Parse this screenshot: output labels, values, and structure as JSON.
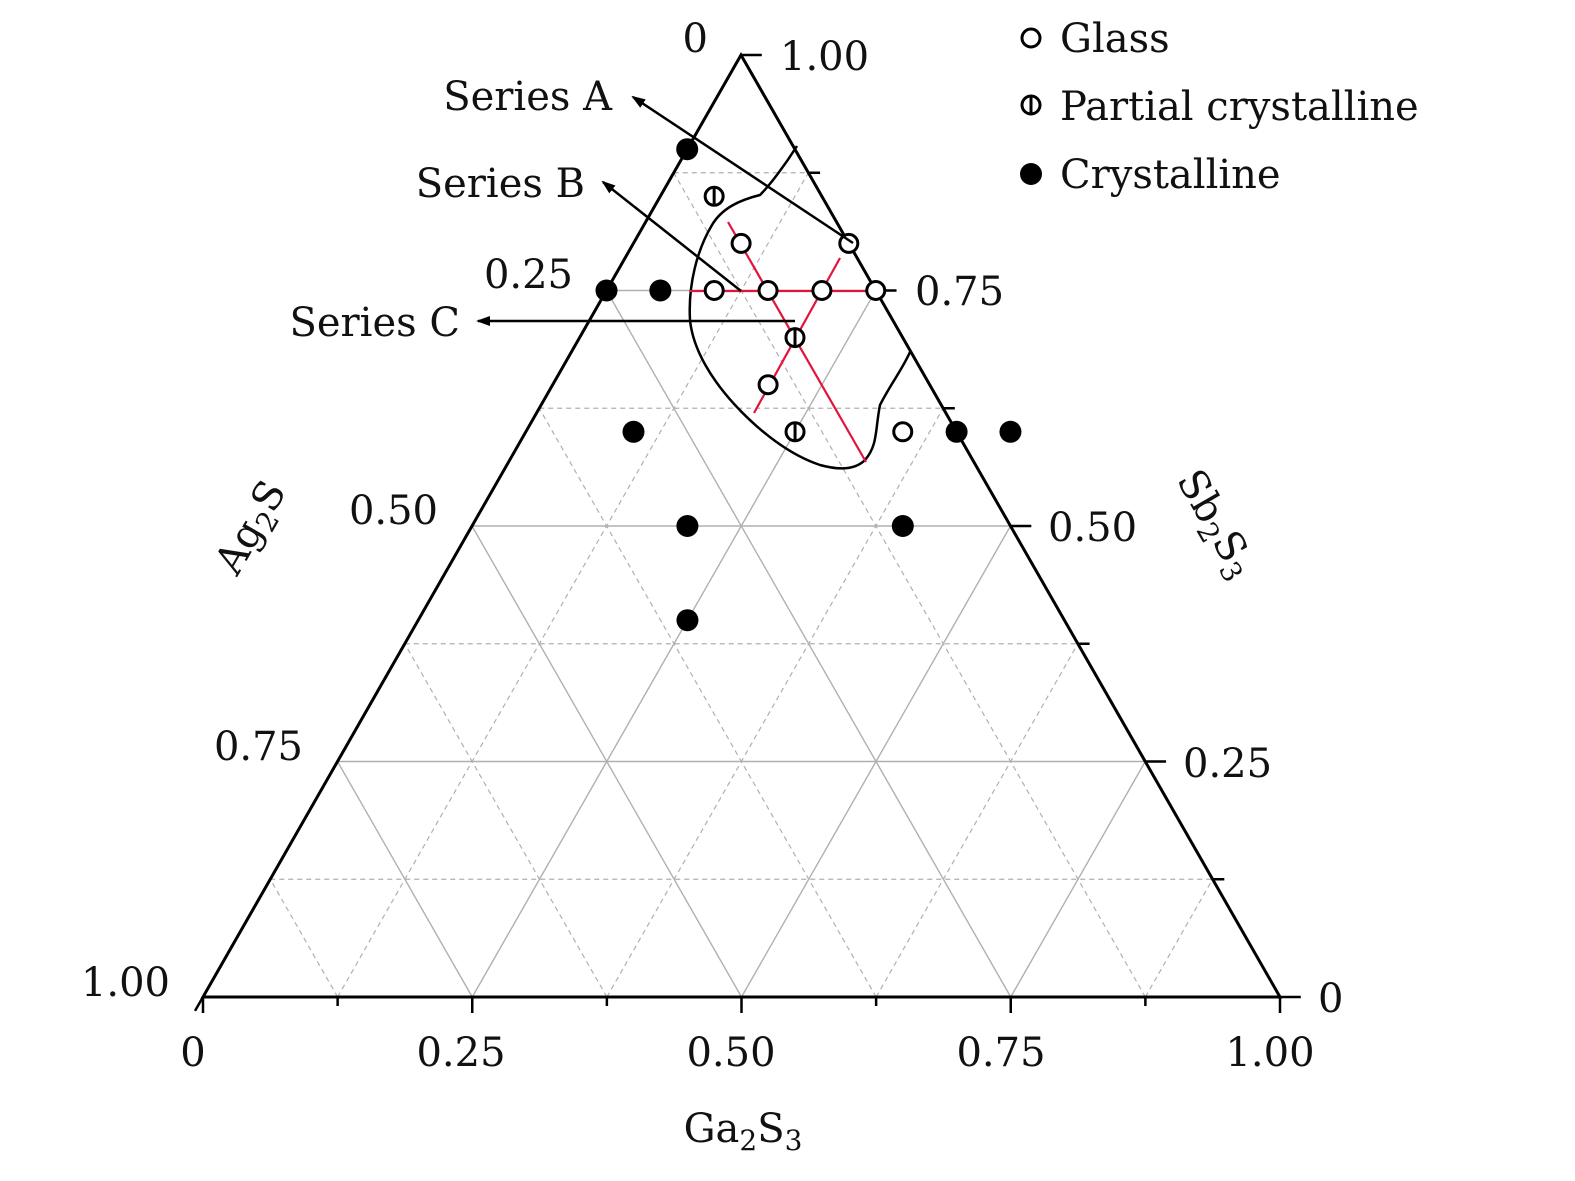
{
  "chart_data": {
    "type": "scatter",
    "subtype": "ternary",
    "axes": {
      "bottom": {
        "label": "Ga2S3",
        "ticks": [
          "0",
          "0.25",
          "0.50",
          "0.75",
          "1.00"
        ]
      },
      "left": {
        "label": "Ag2S",
        "ticks": [
          "0",
          "0.25",
          "0.50",
          "0.75",
          "1.00"
        ]
      },
      "right": {
        "label": "Sb2S3",
        "ticks": [
          "1.00",
          "0.75",
          "0.50",
          "0.25",
          "0"
        ]
      }
    },
    "grid": true,
    "legend": {
      "placement": "top-right",
      "items": [
        {
          "label": "Glass",
          "marker": "open"
        },
        {
          "label": "Partial crystalline",
          "marker": "half"
        },
        {
          "label": "Crystalline",
          "marker": "filled"
        }
      ]
    },
    "series_annotations": [
      "Series A",
      "Series B",
      "Series C"
    ],
    "points": [
      {
        "state": "filled",
        "Ga2S3": 0.0,
        "Sb2S3": 0.9
      },
      {
        "state": "half",
        "Ga2S3": 0.05,
        "Sb2S3": 0.85
      },
      {
        "state": "open",
        "Ga2S3": 0.1,
        "Sb2S3": 0.8
      },
      {
        "state": "open",
        "Ga2S3": 0.2,
        "Sb2S3": 0.8
      },
      {
        "state": "filled",
        "Ga2S3": 0.0,
        "Sb2S3": 0.75
      },
      {
        "state": "filled",
        "Ga2S3": 0.05,
        "Sb2S3": 0.75
      },
      {
        "state": "open",
        "Ga2S3": 0.1,
        "Sb2S3": 0.75
      },
      {
        "state": "open",
        "Ga2S3": 0.15,
        "Sb2S3": 0.75
      },
      {
        "state": "open",
        "Ga2S3": 0.2,
        "Sb2S3": 0.75
      },
      {
        "state": "open",
        "Ga2S3": 0.25,
        "Sb2S3": 0.75
      },
      {
        "state": "half",
        "Ga2S3": 0.2,
        "Sb2S3": 0.7
      },
      {
        "state": "open",
        "Ga2S3": 0.2,
        "Sb2S3": 0.65
      },
      {
        "state": "filled",
        "Ga2S3": 0.1,
        "Sb2S3": 0.6
      },
      {
        "state": "half",
        "Ga2S3": 0.25,
        "Sb2S3": 0.6
      },
      {
        "state": "open",
        "Ga2S3": 0.35,
        "Sb2S3": 0.6
      },
      {
        "state": "filled",
        "Ga2S3": 0.4,
        "Sb2S3": 0.6
      },
      {
        "state": "filled",
        "Ga2S3": 0.45,
        "Sb2S3": 0.6
      },
      {
        "state": "filled",
        "Ga2S3": 0.2,
        "Sb2S3": 0.5
      },
      {
        "state": "filled",
        "Ga2S3": 0.4,
        "Sb2S3": 0.5
      },
      {
        "state": "filled",
        "Ga2S3": 0.25,
        "Sb2S3": 0.4
      }
    ],
    "colors": {
      "axis": "#000000",
      "grid": "#b0b0b0",
      "series_lines": "#e0143c"
    }
  }
}
